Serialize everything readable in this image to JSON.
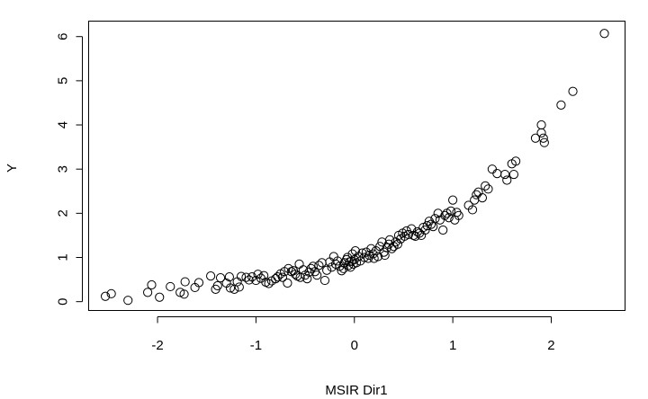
{
  "chart_data": {
    "type": "scatter",
    "title": "",
    "xlabel": "MSIR Dir1",
    "ylabel": "Y",
    "xlim": [
      -2.7,
      2.75
    ],
    "ylim": [
      -0.2,
      6.35
    ],
    "xticks": [
      -2,
      -1,
      0,
      1,
      2
    ],
    "yticks": [
      0,
      1,
      2,
      3,
      4,
      5,
      6
    ],
    "grid": false,
    "legend": "none",
    "marker": "open-circle",
    "points": [
      [
        -2.53,
        0.12
      ],
      [
        -2.47,
        0.18
      ],
      [
        -2.3,
        0.03
      ],
      [
        -2.1,
        0.21
      ],
      [
        -2.06,
        0.38
      ],
      [
        -1.98,
        0.1
      ],
      [
        -1.87,
        0.34
      ],
      [
        -1.77,
        0.21
      ],
      [
        -1.73,
        0.17
      ],
      [
        -1.72,
        0.45
      ],
      [
        -1.62,
        0.32
      ],
      [
        -1.58,
        0.43
      ],
      [
        -1.46,
        0.58
      ],
      [
        -1.41,
        0.28
      ],
      [
        -1.39,
        0.36
      ],
      [
        -1.36,
        0.54
      ],
      [
        -1.3,
        0.42
      ],
      [
        -1.27,
        0.56
      ],
      [
        -1.26,
        0.31
      ],
      [
        -1.22,
        0.28
      ],
      [
        -1.19,
        0.45
      ],
      [
        -1.17,
        0.33
      ],
      [
        -1.15,
        0.57
      ],
      [
        -1.1,
        0.55
      ],
      [
        -1.07,
        0.49
      ],
      [
        -1.04,
        0.56
      ],
      [
        -1.0,
        0.48
      ],
      [
        -0.98,
        0.62
      ],
      [
        -0.95,
        0.53
      ],
      [
        -0.92,
        0.59
      ],
      [
        -0.9,
        0.44
      ],
      [
        -0.87,
        0.41
      ],
      [
        -0.84,
        0.47
      ],
      [
        -0.8,
        0.52
      ],
      [
        -0.78,
        0.56
      ],
      [
        -0.75,
        0.63
      ],
      [
        -0.73,
        0.55
      ],
      [
        -0.71,
        0.68
      ],
      [
        -0.68,
        0.42
      ],
      [
        -0.67,
        0.75
      ],
      [
        -0.64,
        0.68
      ],
      [
        -0.62,
        0.7
      ],
      [
        -0.6,
        0.62
      ],
      [
        -0.58,
        0.58
      ],
      [
        -0.56,
        0.85
      ],
      [
        -0.55,
        0.55
      ],
      [
        -0.52,
        0.72
      ],
      [
        -0.5,
        0.6
      ],
      [
        -0.48,
        0.52
      ],
      [
        -0.46,
        0.67
      ],
      [
        -0.44,
        0.75
      ],
      [
        -0.42,
        0.8
      ],
      [
        -0.4,
        0.68
      ],
      [
        -0.38,
        0.6
      ],
      [
        -0.36,
        0.82
      ],
      [
        -0.33,
        0.88
      ],
      [
        -0.3,
        0.48
      ],
      [
        -0.28,
        0.71
      ],
      [
        -0.25,
        0.9
      ],
      [
        -0.23,
        0.78
      ],
      [
        -0.21,
        1.02
      ],
      [
        -0.19,
        0.85
      ],
      [
        -0.17,
        0.92
      ],
      [
        -0.15,
        0.8
      ],
      [
        -0.13,
        0.7
      ],
      [
        -0.11,
        0.75
      ],
      [
        -0.1,
        0.88
      ],
      [
        -0.08,
        0.95
      ],
      [
        -0.07,
        1.0
      ],
      [
        -0.06,
        0.82
      ],
      [
        -0.05,
        0.9
      ],
      [
        -0.04,
        0.78
      ],
      [
        -0.03,
        0.92
      ],
      [
        -0.02,
        1.08
      ],
      [
        -0.01,
        0.85
      ],
      [
        0.0,
        0.95
      ],
      [
        0.01,
        1.15
      ],
      [
        0.02,
        0.88
      ],
      [
        0.04,
        1.02
      ],
      [
        0.06,
        0.92
      ],
      [
        0.08,
        1.1
      ],
      [
        0.1,
        1.0
      ],
      [
        0.12,
        1.12
      ],
      [
        0.14,
        0.98
      ],
      [
        0.15,
        1.05
      ],
      [
        0.17,
        1.2
      ],
      [
        0.19,
        1.08
      ],
      [
        0.2,
        0.98
      ],
      [
        0.22,
        1.15
      ],
      [
        0.24,
        1.02
      ],
      [
        0.26,
        1.25
      ],
      [
        0.28,
        1.35
      ],
      [
        0.3,
        1.12
      ],
      [
        0.31,
        1.05
      ],
      [
        0.33,
        1.22
      ],
      [
        0.35,
        1.3
      ],
      [
        0.36,
        1.4
      ],
      [
        0.38,
        1.2
      ],
      [
        0.4,
        1.25
      ],
      [
        0.42,
        1.35
      ],
      [
        0.44,
        1.3
      ],
      [
        0.45,
        1.5
      ],
      [
        0.47,
        1.42
      ],
      [
        0.49,
        1.55
      ],
      [
        0.51,
        1.48
      ],
      [
        0.53,
        1.6
      ],
      [
        0.55,
        1.52
      ],
      [
        0.58,
        1.65
      ],
      [
        0.6,
        1.5
      ],
      [
        0.62,
        1.48
      ],
      [
        0.64,
        1.58
      ],
      [
        0.66,
        1.55
      ],
      [
        0.68,
        1.5
      ],
      [
        0.7,
        1.68
      ],
      [
        0.72,
        1.62
      ],
      [
        0.74,
        1.72
      ],
      [
        0.76,
        1.82
      ],
      [
        0.78,
        1.75
      ],
      [
        0.8,
        1.7
      ],
      [
        0.82,
        1.88
      ],
      [
        0.85,
        2.0
      ],
      [
        0.87,
        1.85
      ],
      [
        0.9,
        1.62
      ],
      [
        0.92,
        1.95
      ],
      [
        0.94,
        2.0
      ],
      [
        0.96,
        1.9
      ],
      [
        0.98,
        2.05
      ],
      [
        1.0,
        2.3
      ],
      [
        1.02,
        1.85
      ],
      [
        1.04,
        2.02
      ],
      [
        1.06,
        1.95
      ],
      [
        1.16,
        2.18
      ],
      [
        1.2,
        2.08
      ],
      [
        1.22,
        2.3
      ],
      [
        1.24,
        2.42
      ],
      [
        1.26,
        2.48
      ],
      [
        1.3,
        2.35
      ],
      [
        1.33,
        2.62
      ],
      [
        1.36,
        2.55
      ],
      [
        1.4,
        3.0
      ],
      [
        1.45,
        2.9
      ],
      [
        1.53,
        2.88
      ],
      [
        1.55,
        2.75
      ],
      [
        1.6,
        3.12
      ],
      [
        1.62,
        2.88
      ],
      [
        1.64,
        3.18
      ],
      [
        1.84,
        3.7
      ],
      [
        1.9,
        3.82
      ],
      [
        1.9,
        4.0
      ],
      [
        1.92,
        3.7
      ],
      [
        1.93,
        3.6
      ],
      [
        2.1,
        4.45
      ],
      [
        2.22,
        4.76
      ],
      [
        2.54,
        6.07
      ]
    ]
  }
}
